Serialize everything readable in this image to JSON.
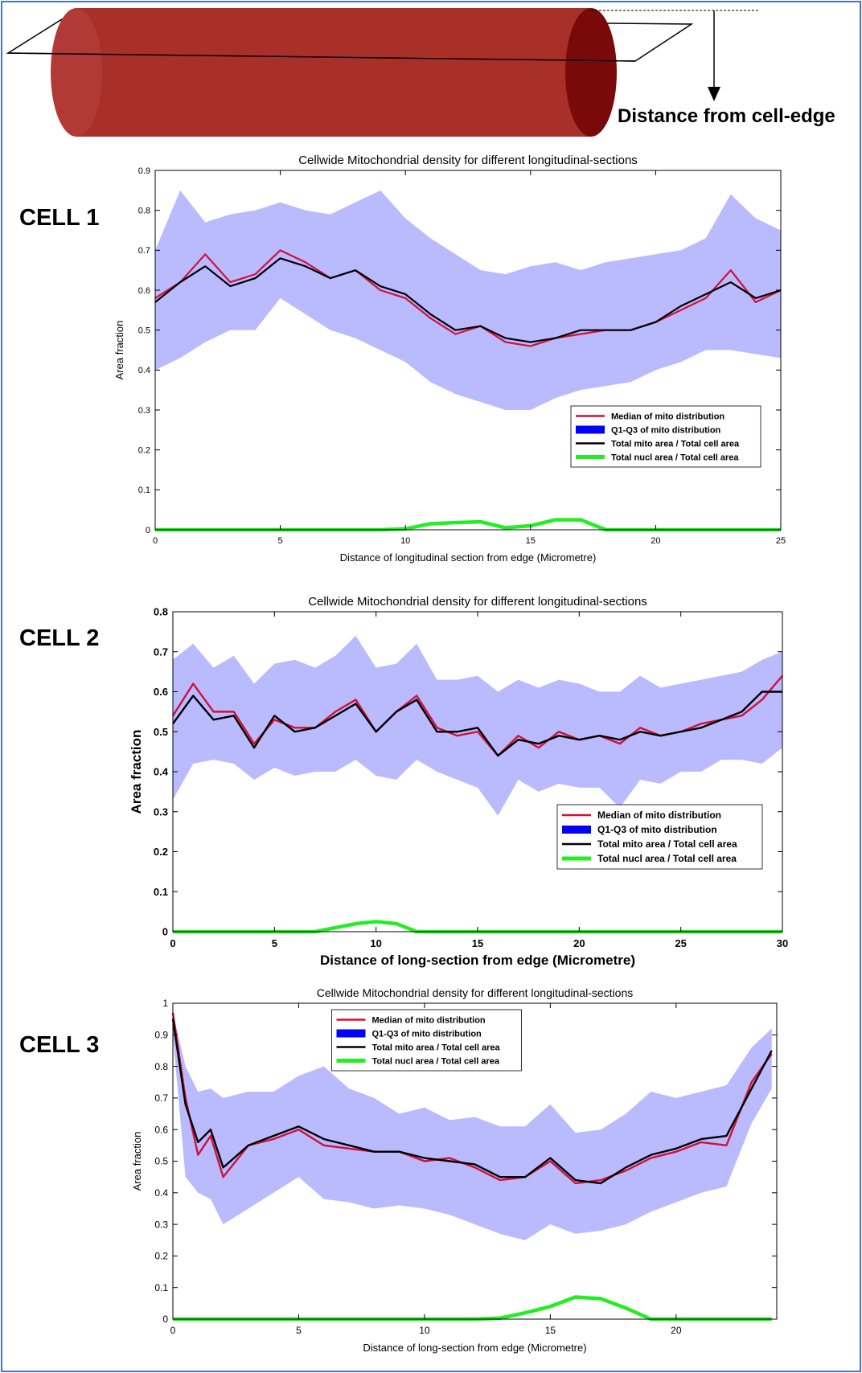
{
  "diagram": {
    "label": "Distance from cell-edge"
  },
  "cell_labels": [
    "CELL 1",
    "CELL 2",
    "CELL 3"
  ],
  "chart_data": [
    {
      "type": "line",
      "title": "Cellwide Mitochondrial density for different longitudinal-sections",
      "xlabel": "Distance of longitudinal section from edge (Micrometre)",
      "ylabel": "Area fraction",
      "xlim": [
        0,
        25
      ],
      "xticks": [
        0,
        5,
        10,
        15,
        20,
        25
      ],
      "ylim": [
        0,
        0.9
      ],
      "yticks": [
        0,
        0.1,
        0.2,
        0.3,
        0.4,
        0.5,
        0.6,
        0.7,
        0.8,
        0.9
      ],
      "legend": "lower right",
      "x": [
        0,
        1,
        2,
        3,
        4,
        5,
        6,
        7,
        8,
        9,
        10,
        11,
        12,
        13,
        14,
        15,
        16,
        17,
        18,
        19,
        20,
        21,
        22,
        23,
        24,
        25
      ],
      "series": [
        {
          "name": "Median of mito distribution",
          "color": "#d0103a",
          "values": [
            0.58,
            0.62,
            0.69,
            0.62,
            0.64,
            0.7,
            0.67,
            0.63,
            0.65,
            0.6,
            0.58,
            0.53,
            0.49,
            0.51,
            0.47,
            0.46,
            0.48,
            0.49,
            0.5,
            0.5,
            0.52,
            0.55,
            0.58,
            0.65,
            0.57,
            0.6
          ]
        },
        {
          "name": "Q1-Q3 of mito distribution",
          "color": "#0000ff",
          "q1": [
            0.4,
            0.43,
            0.47,
            0.5,
            0.5,
            0.58,
            0.54,
            0.5,
            0.48,
            0.45,
            0.42,
            0.37,
            0.34,
            0.32,
            0.3,
            0.3,
            0.33,
            0.35,
            0.36,
            0.37,
            0.4,
            0.42,
            0.45,
            0.45,
            0.44,
            0.43
          ],
          "q3": [
            0.7,
            0.85,
            0.77,
            0.79,
            0.8,
            0.82,
            0.8,
            0.79,
            0.82,
            0.85,
            0.78,
            0.73,
            0.69,
            0.65,
            0.64,
            0.66,
            0.67,
            0.65,
            0.67,
            0.68,
            0.69,
            0.7,
            0.73,
            0.84,
            0.78,
            0.75
          ]
        },
        {
          "name": "Total mito area / Total cell area",
          "color": "#000000",
          "values": [
            0.57,
            0.62,
            0.66,
            0.61,
            0.63,
            0.68,
            0.66,
            0.63,
            0.65,
            0.61,
            0.59,
            0.54,
            0.5,
            0.51,
            0.48,
            0.47,
            0.48,
            0.5,
            0.5,
            0.5,
            0.52,
            0.56,
            0.59,
            0.62,
            0.58,
            0.6
          ]
        },
        {
          "name": "Total nucl area / Total cell area",
          "color": "#22ee22",
          "values": [
            0,
            0,
            0,
            0,
            0,
            0,
            0,
            0,
            0,
            0,
            0.002,
            0.015,
            0.018,
            0.02,
            0.005,
            0.01,
            0.025,
            0.025,
            0,
            0,
            0,
            0,
            0,
            0,
            0,
            0
          ]
        }
      ]
    },
    {
      "type": "line",
      "title": "Cellwide Mitochondrial density for different longitudinal-sections",
      "xlabel": "Distance of long-section from edge (Micrometre)",
      "ylabel": "Area fraction",
      "xlim": [
        0,
        30
      ],
      "xticks": [
        0,
        5,
        10,
        15,
        20,
        25,
        30
      ],
      "ylim": [
        0,
        0.8
      ],
      "yticks": [
        0,
        0.1,
        0.2,
        0.3,
        0.4,
        0.5,
        0.6,
        0.7,
        0.8
      ],
      "legend": "lower right",
      "x": [
        0,
        1,
        2,
        3,
        4,
        5,
        6,
        7,
        8,
        9,
        10,
        11,
        12,
        13,
        14,
        15,
        16,
        17,
        18,
        19,
        20,
        21,
        22,
        23,
        24,
        25,
        26,
        27,
        28,
        29,
        30
      ],
      "series": [
        {
          "name": "Median of mito distribution",
          "color": "#d0103a",
          "values": [
            0.54,
            0.62,
            0.55,
            0.55,
            0.47,
            0.53,
            0.51,
            0.51,
            0.55,
            0.58,
            0.5,
            0.55,
            0.59,
            0.51,
            0.49,
            0.5,
            0.44,
            0.49,
            0.46,
            0.5,
            0.48,
            0.49,
            0.47,
            0.51,
            0.49,
            0.5,
            0.52,
            0.53,
            0.54,
            0.58,
            0.64
          ]
        },
        {
          "name": "Q1-Q3 of mito distribution",
          "color": "#0000ff",
          "q1": [
            0.33,
            0.42,
            0.43,
            0.42,
            0.38,
            0.41,
            0.39,
            0.4,
            0.4,
            0.43,
            0.39,
            0.38,
            0.43,
            0.4,
            0.38,
            0.36,
            0.29,
            0.38,
            0.35,
            0.37,
            0.36,
            0.36,
            0.31,
            0.38,
            0.37,
            0.4,
            0.4,
            0.43,
            0.43,
            0.42,
            0.46
          ],
          "q3": [
            0.68,
            0.72,
            0.66,
            0.69,
            0.62,
            0.67,
            0.68,
            0.66,
            0.69,
            0.74,
            0.66,
            0.67,
            0.72,
            0.63,
            0.63,
            0.64,
            0.6,
            0.63,
            0.61,
            0.63,
            0.62,
            0.6,
            0.6,
            0.64,
            0.61,
            0.62,
            0.63,
            0.64,
            0.65,
            0.68,
            0.7
          ]
        },
        {
          "name": "Total mito area / Total cell area",
          "color": "#000000",
          "values": [
            0.52,
            0.59,
            0.53,
            0.54,
            0.46,
            0.54,
            0.5,
            0.51,
            0.54,
            0.57,
            0.5,
            0.55,
            0.58,
            0.5,
            0.5,
            0.51,
            0.44,
            0.48,
            0.47,
            0.49,
            0.48,
            0.49,
            0.48,
            0.5,
            0.49,
            0.5,
            0.51,
            0.53,
            0.55,
            0.6,
            0.6
          ]
        },
        {
          "name": "Total nucl area / Total cell area",
          "color": "#22ee22",
          "values": [
            0,
            0,
            0,
            0,
            0,
            0,
            0,
            0,
            0.01,
            0.02,
            0.025,
            0.02,
            0,
            0,
            0,
            0,
            0,
            0,
            0,
            0,
            0,
            0,
            0,
            0,
            0,
            0,
            0,
            0,
            0,
            0,
            0
          ]
        }
      ]
    },
    {
      "type": "line",
      "title": "Cellwide Mitochondrial density for different longitudinal-sections",
      "xlabel": "Distance of long-section from edge (Micrometre)",
      "ylabel": "Area fraction",
      "xlim": [
        0,
        24
      ],
      "xticks": [
        0,
        5,
        10,
        15,
        20
      ],
      "ylim": [
        0,
        1
      ],
      "yticks": [
        0,
        0.1,
        0.2,
        0.3,
        0.4,
        0.5,
        0.6,
        0.7,
        0.8,
        0.9,
        1
      ],
      "legend": "upper center",
      "x": [
        0,
        0.5,
        1,
        1.5,
        2,
        3,
        4,
        5,
        6,
        7,
        8,
        9,
        10,
        11,
        12,
        13,
        14,
        15,
        16,
        17,
        18,
        19,
        20,
        21,
        22,
        23,
        23.8
      ],
      "series": [
        {
          "name": "Median of mito distribution",
          "color": "#d0103a",
          "values": [
            0.97,
            0.7,
            0.52,
            0.58,
            0.45,
            0.55,
            0.57,
            0.6,
            0.55,
            0.54,
            0.53,
            0.53,
            0.5,
            0.51,
            0.48,
            0.44,
            0.45,
            0.5,
            0.43,
            0.44,
            0.47,
            0.51,
            0.53,
            0.56,
            0.55,
            0.75,
            0.84
          ]
        },
        {
          "name": "Q1-Q3 of mito distribution",
          "color": "#0000ff",
          "q1": [
            0.9,
            0.45,
            0.4,
            0.38,
            0.3,
            0.35,
            0.4,
            0.45,
            0.38,
            0.37,
            0.35,
            0.36,
            0.35,
            0.33,
            0.3,
            0.27,
            0.25,
            0.3,
            0.27,
            0.28,
            0.3,
            0.34,
            0.37,
            0.4,
            0.42,
            0.62,
            0.73
          ],
          "q3": [
            0.97,
            0.8,
            0.72,
            0.73,
            0.7,
            0.72,
            0.72,
            0.77,
            0.8,
            0.73,
            0.7,
            0.65,
            0.67,
            0.63,
            0.64,
            0.61,
            0.61,
            0.68,
            0.59,
            0.6,
            0.65,
            0.72,
            0.7,
            0.72,
            0.74,
            0.86,
            0.92
          ]
        },
        {
          "name": "Total mito area / Total cell area",
          "color": "#000000",
          "values": [
            0.95,
            0.68,
            0.56,
            0.6,
            0.48,
            0.55,
            0.58,
            0.61,
            0.57,
            0.55,
            0.53,
            0.53,
            0.51,
            0.5,
            0.49,
            0.45,
            0.45,
            0.51,
            0.44,
            0.43,
            0.48,
            0.52,
            0.54,
            0.57,
            0.58,
            0.73,
            0.85
          ]
        },
        {
          "name": "Total nucl area / Total cell area",
          "color": "#22ee22",
          "values": [
            0,
            0,
            0,
            0,
            0,
            0,
            0,
            0,
            0,
            0,
            0,
            0,
            0,
            0,
            0,
            0.003,
            0.02,
            0.04,
            0.07,
            0.065,
            0.035,
            0,
            0,
            0,
            0,
            0,
            0
          ]
        }
      ]
    }
  ]
}
